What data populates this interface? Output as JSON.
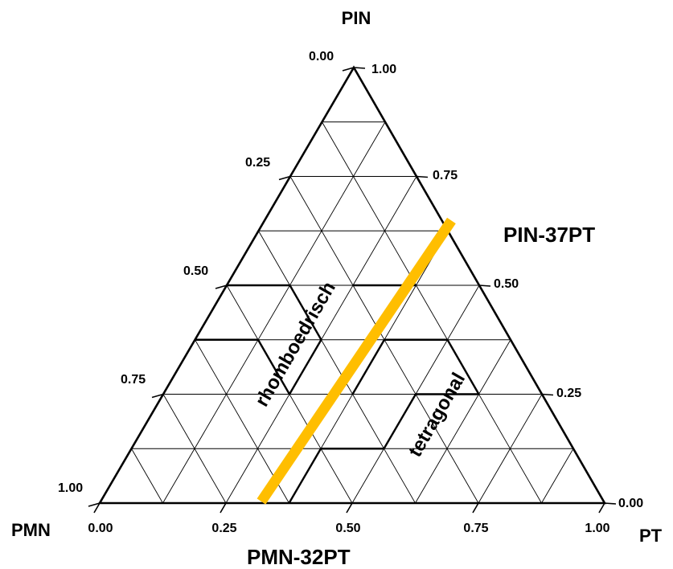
{
  "diagram": {
    "vertices": {
      "top": "PIN",
      "left": "PMN",
      "right": "PT"
    },
    "labels": {
      "pin_37pt": "PIN-37PT",
      "pmn_32pt": "PMN-32PT"
    },
    "phases": {
      "rhombohedral": "rhomboedrisch",
      "tetragonal": "tetragonal"
    },
    "ticks": {
      "left_side": [
        "0.00",
        "0.25",
        "0.50",
        "0.75",
        "1.00"
      ],
      "right_side": [
        "1.00",
        "0.75",
        "0.50",
        "0.25",
        "0.00"
      ],
      "bottom": [
        "0.00",
        "0.25",
        "0.50",
        "0.75",
        "1.00"
      ]
    },
    "mpb_line": {
      "from": {
        "PMN": 0.68,
        "PT": 0.32,
        "PIN": 0.0
      },
      "to": {
        "PMN": 0.0,
        "PT": 0.37,
        "PIN": 0.63
      }
    },
    "colors": {
      "mpb": "#FFBE00",
      "grid": "#000000"
    }
  }
}
